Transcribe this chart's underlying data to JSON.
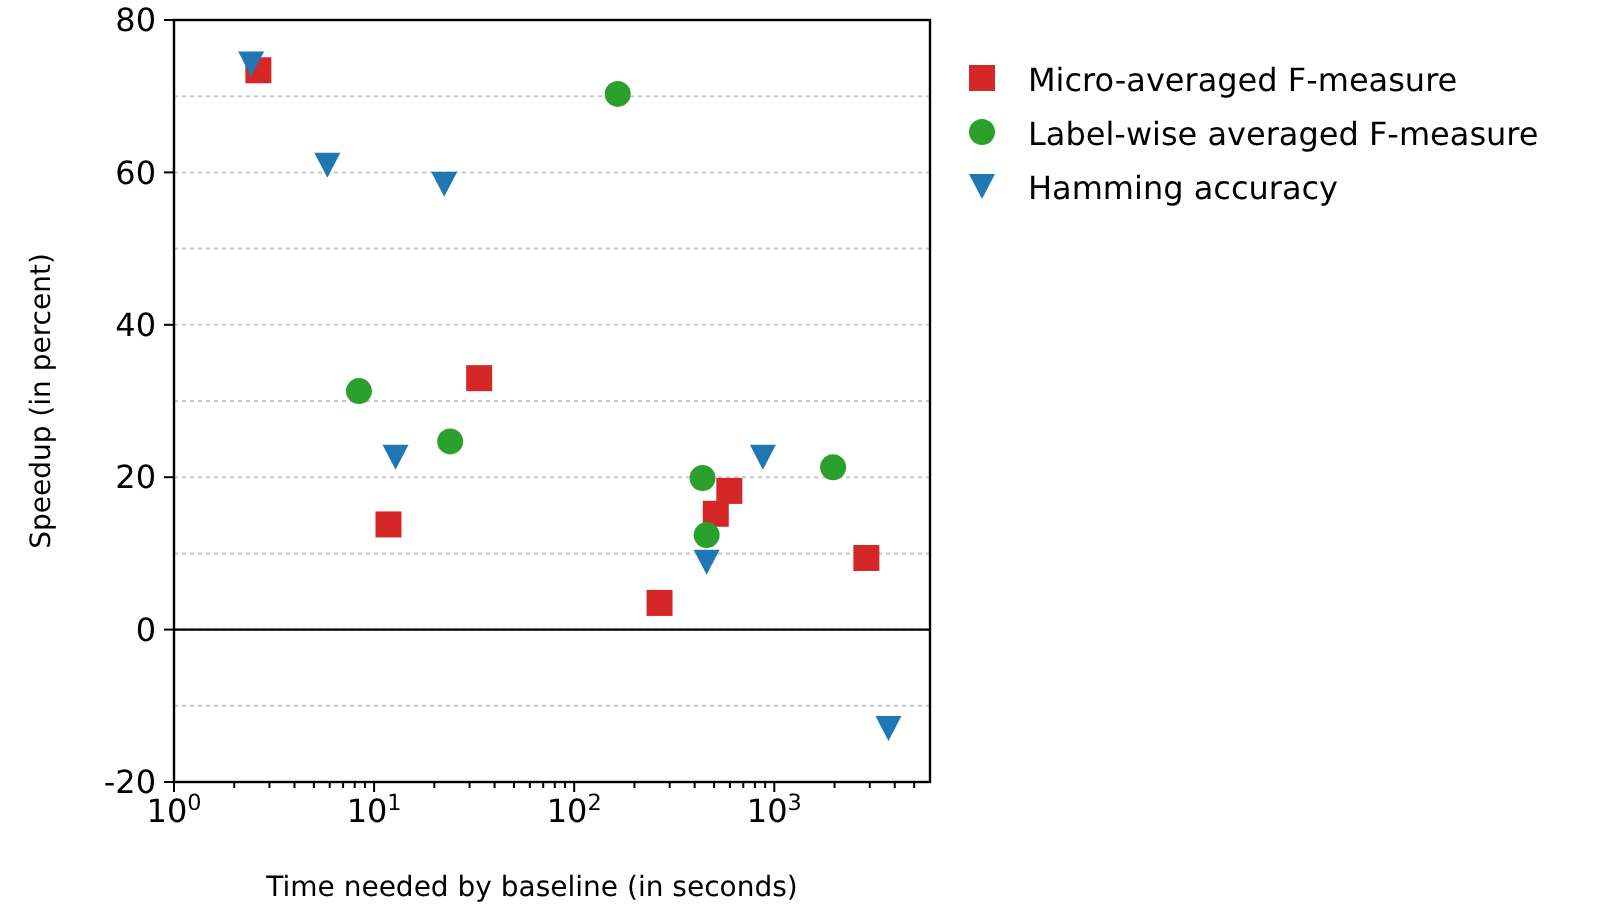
{
  "chart_data": {
    "type": "scatter",
    "xlabel": "Time needed by baseline (in seconds)",
    "ylabel": "Speedup (in percent)",
    "log": "x",
    "xlim": [
      1,
      6000
    ],
    "xticks": [
      {
        "value": 1,
        "label": "10$^{0}$"
      },
      {
        "value": 2,
        "label": null
      },
      {
        "value": 3,
        "label": null
      },
      {
        "value": 4,
        "label": null
      },
      {
        "value": 5,
        "label": null
      },
      {
        "value": 6,
        "label": null
      },
      {
        "value": 7,
        "label": null
      },
      {
        "value": 8,
        "label": null
      },
      {
        "value": 9,
        "label": null
      },
      {
        "value": 10,
        "label": "10$^{1}$"
      },
      {
        "value": 20,
        "label": null
      },
      {
        "value": 30,
        "label": null
      },
      {
        "value": 40,
        "label": null
      },
      {
        "value": 50,
        "label": null
      },
      {
        "value": 60,
        "label": null
      },
      {
        "value": 70,
        "label": null
      },
      {
        "value": 80,
        "label": null
      },
      {
        "value": 90,
        "label": null
      },
      {
        "value": 100,
        "label": "10$^{2}$"
      },
      {
        "value": 200,
        "label": null
      },
      {
        "value": 300,
        "label": null
      },
      {
        "value": 400,
        "label": null
      },
      {
        "value": 500,
        "label": null
      },
      {
        "value": 600,
        "label": null
      },
      {
        "value": 700,
        "label": null
      },
      {
        "value": 800,
        "label": null
      },
      {
        "value": 900,
        "label": null
      },
      {
        "value": 1000,
        "label": "10$^{3}$"
      },
      {
        "value": 2000,
        "label": null
      },
      {
        "value": 3000,
        "label": null
      },
      {
        "value": 4000,
        "label": null
      },
      {
        "value": 5000,
        "label": null
      }
    ],
    "ylim": [
      -20,
      80
    ],
    "yticks": [
      -20,
      {
        "value": -10,
        "label": null
      },
      0,
      {
        "value": 10,
        "label": null
      },
      20,
      {
        "value": 30,
        "label": null
      },
      40,
      {
        "value": 50,
        "label": null
      },
      60,
      {
        "value": 70,
        "label": null
      },
      80
    ],
    "grid": "y",
    "legend": "top right",
    "ref_lines": [
      {
        "axis": "y",
        "value": 0,
        "color": "#000000"
      }
    ],
    "series": [
      {
        "name": "Micro-averaged F-measure",
        "color": "#d62728",
        "marker": "square",
        "x": [
          2.64,
          33.5,
          11.8,
          267,
          510,
          596,
          2885
        ],
        "values": [
          73.4,
          33.0,
          13.8,
          3.5,
          15.2,
          18.2,
          9.4
        ]
      },
      {
        "name": "Label-wise averaged F-measure",
        "color": "#2ca02c",
        "marker": "circle",
        "x": [
          165,
          8.4,
          24.0,
          438,
          459,
          1968
        ],
        "values": [
          70.3,
          31.3,
          24.7,
          19.9,
          12.4,
          21.3
        ]
      },
      {
        "name": "Hamming accuracy",
        "color": "#1f77b4",
        "marker": "triangle",
        "x": [
          2.43,
          5.84,
          22.4,
          12.8,
          459,
          877,
          3720
        ],
        "values": [
          74.3,
          61.0,
          58.5,
          22.7,
          8.9,
          22.7,
          -12.9
        ]
      }
    ]
  }
}
